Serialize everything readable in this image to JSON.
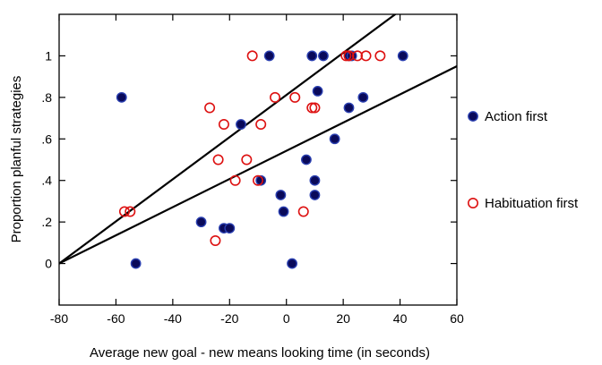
{
  "chart_data": {
    "type": "scatter",
    "title": "",
    "xlabel": "Average new goal - new means looking time (in seconds)",
    "ylabel": "Proportion planful strategies",
    "xlim": [
      -80,
      60
    ],
    "ylim": [
      -0.2,
      1.2
    ],
    "x_ticks": [
      -80,
      -60,
      -40,
      -20,
      0,
      20,
      40,
      60
    ],
    "x_tick_labels": [
      "-80",
      "-60",
      "-40",
      "-20",
      "0",
      "20",
      "40",
      "60"
    ],
    "y_ticks": [
      0,
      0.2,
      0.4,
      0.6,
      0.8,
      1
    ],
    "y_tick_labels": [
      "0",
      ".2",
      ".4",
      ".6",
      ".8",
      "1"
    ],
    "grid": false,
    "legend_position": "right",
    "series": [
      {
        "name": "Action first",
        "marker": "filled-circle",
        "color": "#0a0a5a",
        "edge_color": "#2a3fb0",
        "x": [
          -58,
          -53,
          -30,
          -22,
          -20,
          -16,
          -9,
          -6,
          -2,
          -1,
          2,
          7,
          9,
          10,
          10,
          11,
          13,
          17,
          22,
          22,
          23,
          27,
          41
        ],
        "y": [
          0.8,
          0.0,
          0.2,
          0.17,
          0.17,
          0.67,
          0.4,
          1.0,
          0.33,
          0.25,
          0.0,
          0.5,
          1.0,
          0.33,
          0.4,
          0.83,
          1.0,
          0.6,
          0.75,
          1.0,
          1.0,
          0.8,
          1.0
        ]
      },
      {
        "name": "Habituation first",
        "marker": "open-circle",
        "color": "#dd1111",
        "x": [
          -57,
          -55,
          -27,
          -25,
          -24,
          -22,
          -18,
          -14,
          -12,
          -10,
          -9,
          -4,
          3,
          6,
          9,
          10,
          21,
          22,
          25,
          28,
          33
        ],
        "y": [
          0.25,
          0.25,
          0.75,
          0.11,
          0.5,
          0.67,
          0.4,
          0.5,
          1.0,
          0.4,
          0.67,
          0.8,
          0.8,
          0.25,
          0.75,
          0.75,
          1.0,
          1.0,
          1.0,
          1.0,
          1.0
        ]
      }
    ],
    "fit_lines": [
      {
        "x": [
          -80,
          58
        ],
        "y": [
          0.0,
          1.4
        ]
      },
      {
        "x": [
          -80,
          60
        ],
        "y": [
          0.0,
          0.95
        ]
      }
    ]
  }
}
